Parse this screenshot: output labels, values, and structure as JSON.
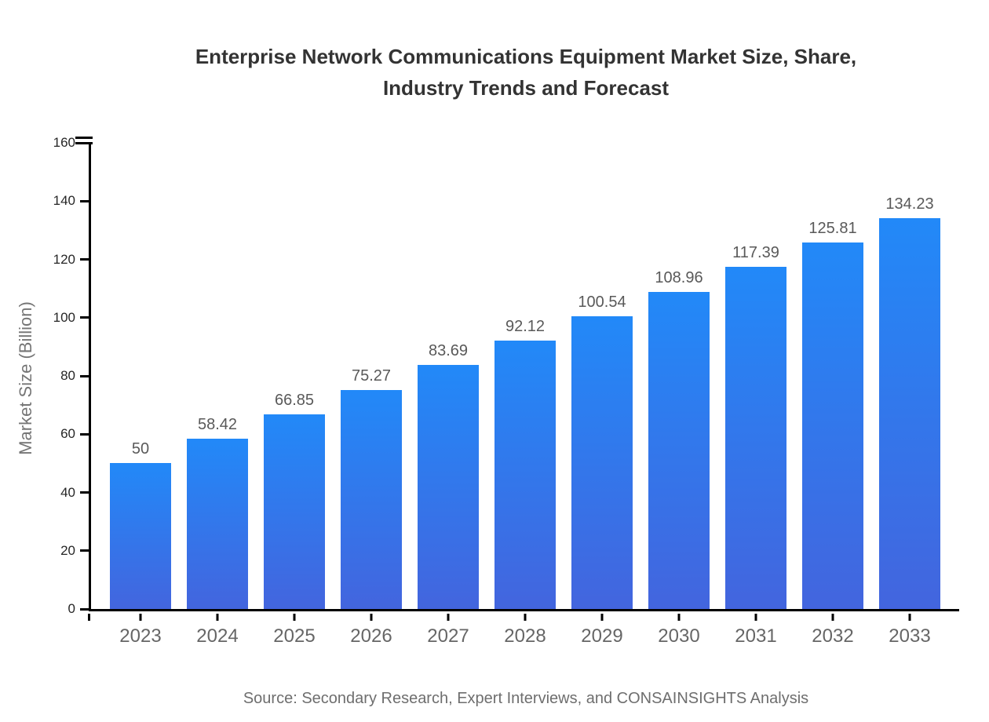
{
  "title": {
    "lines": [
      "Enterprise Network Communications Equipment Market Size, Share,",
      "Industry Trends and Forecast"
    ]
  },
  "source_text": "Source: Secondary Research, Expert Interviews, and CONSAINSIGHTS Analysis",
  "colors": {
    "background": "#FFFFFF",
    "bar_gradient_top": "#2289F8",
    "bar_gradient_bottom": "#4365DE",
    "axis": "#000000",
    "title": "#333333",
    "y_tick_label": "#262626",
    "x_tick_label": "#666666",
    "value_label": "#595959",
    "y_axis_label": "#757575",
    "source": "#6E6E6E"
  },
  "chart_data": {
    "type": "bar",
    "title": "Enterprise Network Communications Equipment Market Size, Share, Industry Trends and Forecast",
    "xlabel": "",
    "ylabel": "Market Size (Billion)",
    "categories": [
      "2023",
      "2024",
      "2025",
      "2026",
      "2027",
      "2028",
      "2029",
      "2030",
      "2031",
      "2032",
      "2033"
    ],
    "values": [
      50,
      58.42,
      66.85,
      75.27,
      83.69,
      92.12,
      100.54,
      108.96,
      117.39,
      125.81,
      134.23
    ],
    "value_labels": [
      "50",
      "58.42",
      "66.85",
      "75.27",
      "83.69",
      "92.12",
      "100.54",
      "108.96",
      "117.39",
      "125.81",
      "134.23"
    ],
    "ylim": [
      0,
      160
    ],
    "yticks": [
      0,
      20,
      40,
      60,
      80,
      100,
      120,
      140,
      160
    ],
    "grid": false,
    "legend": false,
    "source_note": "Source: Secondary Research, Expert Interviews, and CONSAINSIGHTS Analysis"
  }
}
